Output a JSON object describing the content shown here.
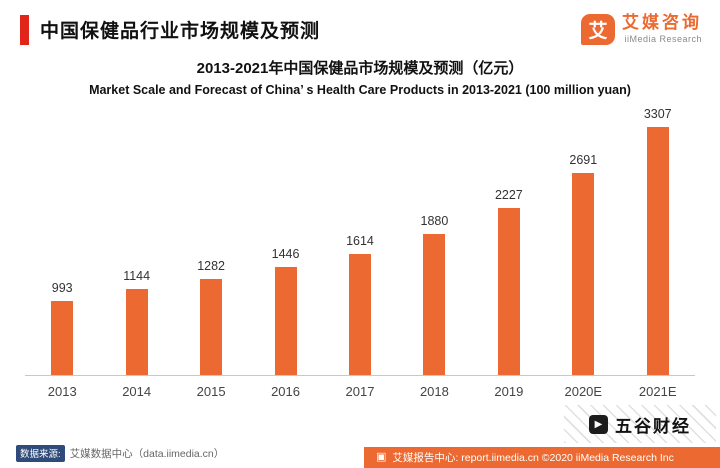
{
  "theme": {
    "accent_red": "#E1251B",
    "brand_orange": "#EC6A31"
  },
  "header": {
    "title": "中国保健品行业市场规模及预测",
    "logo": {
      "icon_char": "艾",
      "brand": "艾媒咨询",
      "sub": "iiMedia Research"
    }
  },
  "chart_data": {
    "type": "bar",
    "title": "2013-2021年中国保健品市场规模及预测（亿元）",
    "subtitle": "Market Scale and Forecast of China’ s Health Care Products in 2013-2021 (100 million yuan)",
    "categories": [
      "2013",
      "2014",
      "2015",
      "2016",
      "2017",
      "2018",
      "2019",
      "2020E",
      "2021E"
    ],
    "values": [
      993,
      1144,
      1282,
      1446,
      1614,
      1880,
      2227,
      2691,
      3307
    ],
    "bar_color": "#EC6A31",
    "xlabel": "",
    "ylabel": "",
    "ylim": [
      0,
      3500
    ],
    "grid": false,
    "value_labels": true,
    "legend": "none"
  },
  "footnote": {
    "label": "数据来源:",
    "text": "艾媒数据中心（data.iimedia.cn）"
  },
  "watermark": {
    "text": "五谷财经"
  },
  "footer": {
    "text": "艾媒报告中心: report.iimedia.cn ©2020  iiMedia Research Inc"
  }
}
